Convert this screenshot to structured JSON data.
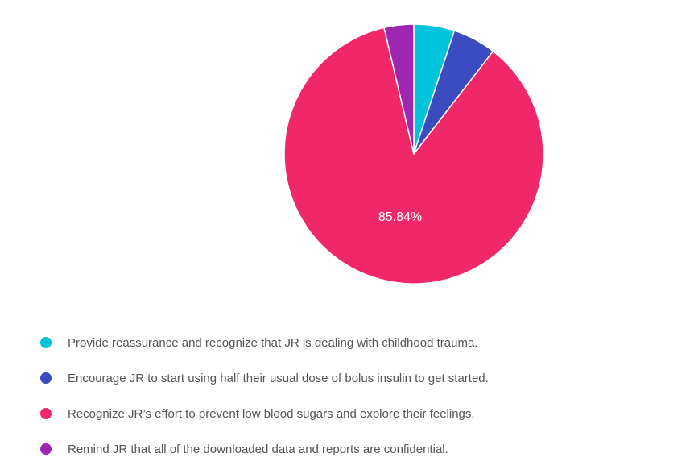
{
  "chart_data": {
    "type": "pie",
    "categories": [
      "Provide reassurance and recognize that JR is dealing with childhood trauma.",
      "Encourage JR to start using half their usual dose of bolus insulin to get started.",
      "Recognize JR’s effort to prevent low blood sugars and explore their feelings.",
      "Remind JR that all of the downloaded data and reports are confidential."
    ],
    "values": [
      5.07,
      5.4,
      85.84,
      3.69
    ],
    "colors": [
      "#00c4db",
      "#3a4cc0",
      "#f0286a",
      "#9d27b0"
    ],
    "data_labels": [
      "",
      "",
      "85.84%",
      ""
    ],
    "legend_position": "bottom"
  },
  "legend": {
    "items": [
      {
        "label": "Provide reassurance and recognize that JR is dealing with childhood trauma.",
        "color": "#00c4db"
      },
      {
        "label": "Encourage JR to start using half their usual dose of bolus insulin to get started.",
        "color": "#3a4cc0"
      },
      {
        "label": "Recognize JR’s effort to prevent low blood sugars and explore their feelings.",
        "color": "#f0286a"
      },
      {
        "label": "Remind JR that all of the downloaded data and reports are confidential.",
        "color": "#9d27b0"
      }
    ]
  }
}
